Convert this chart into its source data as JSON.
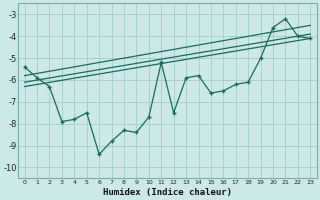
{
  "xlabel": "Humidex (Indice chaleur)",
  "bg_color": "#cce8e8",
  "grid_color": "#aacece",
  "line_color": "#1a6b5e",
  "xlim": [
    -0.5,
    23.5
  ],
  "ylim": [
    -10.5,
    -2.5
  ],
  "xticks": [
    0,
    1,
    2,
    3,
    4,
    5,
    6,
    7,
    8,
    9,
    10,
    11,
    12,
    13,
    14,
    15,
    16,
    17,
    18,
    19,
    20,
    21,
    22,
    23
  ],
  "yticks": [
    -10,
    -9,
    -8,
    -7,
    -6,
    -5,
    -4,
    -3
  ],
  "zigzag_x": [
    0,
    1,
    2,
    3,
    4,
    5,
    6,
    7,
    8,
    9,
    10,
    11,
    12,
    13,
    14,
    15,
    16,
    17,
    18,
    19,
    20,
    21,
    22,
    23
  ],
  "zigzag_y": [
    -5.4,
    -5.9,
    -6.3,
    -7.9,
    -7.8,
    -7.5,
    -9.4,
    -8.8,
    -8.3,
    -8.4,
    -7.7,
    -5.2,
    -7.5,
    -5.9,
    -5.8,
    -6.6,
    -6.5,
    -6.2,
    -6.1,
    -5.0,
    -3.6,
    -3.2,
    -4.0,
    -4.1
  ],
  "trend1_x": [
    0,
    23
  ],
  "trend1_y": [
    -5.8,
    -3.5
  ],
  "trend2_x": [
    0,
    23
  ],
  "trend2_y": [
    -6.1,
    -3.9
  ],
  "trend3_x": [
    0,
    23
  ],
  "trend3_y": [
    -6.3,
    -4.1
  ]
}
